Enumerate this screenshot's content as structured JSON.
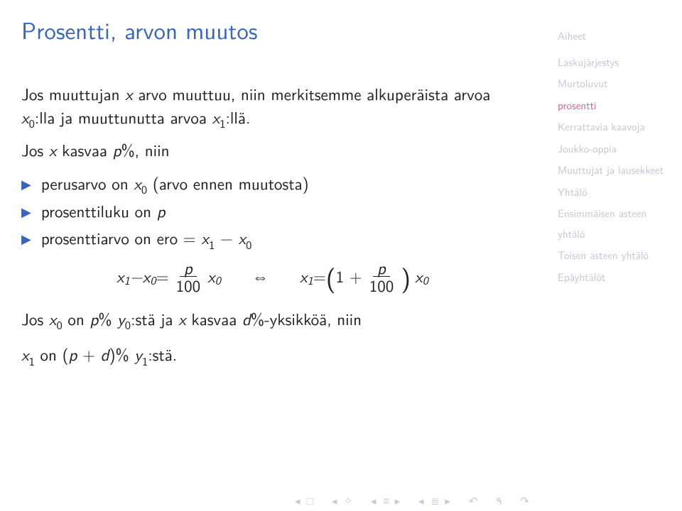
{
  "title": "Prosentti, arvon muutos",
  "paragraph1_pre": "Jos muuttujan ",
  "paragraph1_var1": "x",
  "paragraph1_mid1": " arvo muuttuu, niin merkitsemme alkuperäista arvoa ",
  "paragraph1_var2": "x",
  "paragraph1_sub2": "0",
  "paragraph1_mid2": ":lla ja muuttunutta arvoa ",
  "paragraph1_var3": "x",
  "paragraph1_sub3": "1",
  "paragraph1_end": ":llä.",
  "line2_pre": "Jos ",
  "line2_var": "x",
  "line2_mid": " kasvaa ",
  "line2_p": "p",
  "line2_end": "%, niin",
  "bullet1_pre": "perusarvo on ",
  "bullet1_var": "x",
  "bullet1_sub": "0",
  "bullet1_end": " (arvo ennen muutosta)",
  "bullet2_pre": "prosenttiluku on ",
  "bullet2_var": "p",
  "bullet3_pre": "prosenttiarvo on ero = ",
  "bullet3_v1": "x",
  "bullet3_s1": "1",
  "bullet3_minus": " − ",
  "bullet3_v2": "x",
  "bullet3_s2": "0",
  "eq_lhs_v1": "x",
  "eq_lhs_s1": "1",
  "eq_lhs_minus": " − ",
  "eq_lhs_v2": "x",
  "eq_lhs_s2": "0",
  "eq_eq": " = ",
  "eq_frac_num": "p",
  "eq_frac_den": "100",
  "eq_after_frac_v": "x",
  "eq_after_frac_s": "0",
  "eq_iff": "⇔",
  "eq_r_v1": "x",
  "eq_r_s1": "1",
  "eq_r_eq": " = ",
  "eq_r_one": "1 + ",
  "eq_r_frac_num": "p",
  "eq_r_frac_den": "100",
  "eq_r_tail_v": "x",
  "eq_r_tail_s": "0",
  "line3_pre": "Jos ",
  "line3_v1": "x",
  "line3_s1": "0",
  "line3_mid1": " on ",
  "line3_p": "p",
  "line3_pct1": "% ",
  "line3_v2": "y",
  "line3_s2": "0",
  "line3_mid2": ":stä ja ",
  "line3_v3": "x",
  "line3_mid3": " kasvaa ",
  "line3_d": "d",
  "line3_end": "%-yksikköä, niin",
  "line4_v1": "x",
  "line4_s1": "1",
  "line4_mid1": " on (",
  "line4_p": "p",
  "line4_plus": " + ",
  "line4_d": "d",
  "line4_mid2": ")% ",
  "line4_v2": "y",
  "line4_s2": "1",
  "line4_end": ":stä.",
  "sidebar": {
    "head": "Aiheet",
    "items": [
      {
        "label": "Laskujärjestys",
        "active": false
      },
      {
        "label": "Murtoluvut",
        "active": false
      },
      {
        "label": "prosentti",
        "active": true
      },
      {
        "label": "Kerrattavia kaavoja",
        "active": false
      },
      {
        "label": "Joukko-oppia",
        "active": false
      },
      {
        "label": "Muuttujat ja lausekkeet",
        "active": false
      },
      {
        "label": "Yhtälö",
        "active": false
      },
      {
        "label": "Ensimmäisen asteen yhtälö",
        "active": false
      },
      {
        "label": "Toisen asteen yhtälö",
        "active": false
      },
      {
        "label": "Epäyhtälöt",
        "active": false
      }
    ]
  },
  "colors": {
    "title": "#3a66b8",
    "bullet": "#3a66b8",
    "nav_inactive": "#c4c6d6",
    "nav_active": "#d9638b",
    "navbar": "#c7c9d8",
    "background": "#ffffff",
    "text": "#222222"
  }
}
